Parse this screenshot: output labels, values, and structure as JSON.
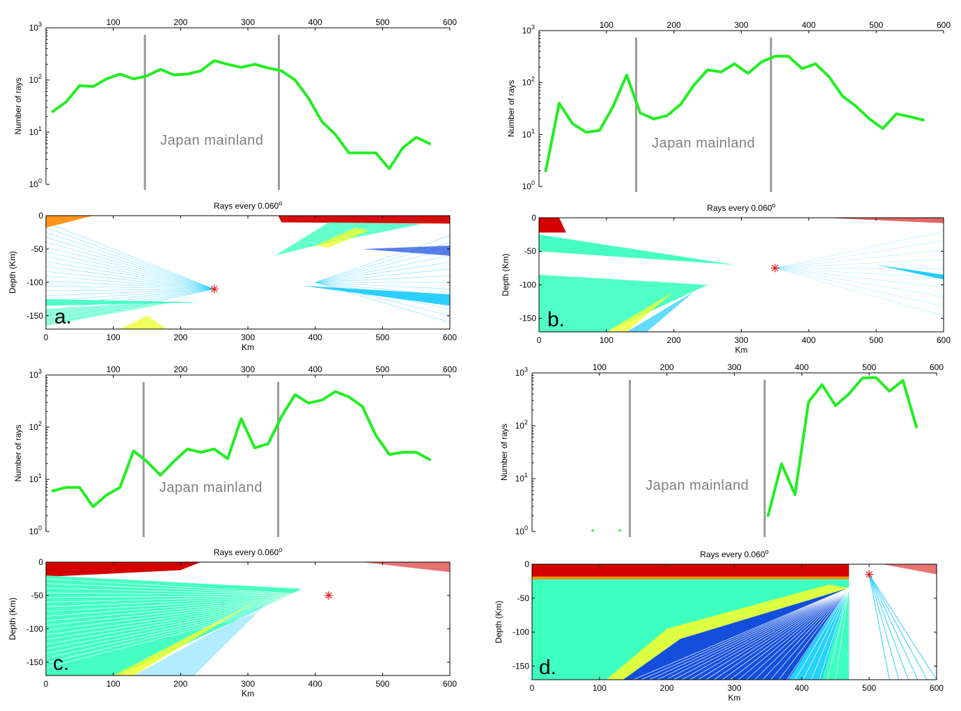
{
  "colors": {
    "ray_line": "#22ee22",
    "mainland_bar": "#9a9a9a",
    "mainland_text": "#7f7f7f",
    "event_star": "#e31a1c",
    "cmap_red": "#d40000",
    "cmap_orange": "#ff8a00",
    "cmap_yellow": "#eeff33",
    "cmap_cyan": "#22ccff",
    "cmap_green": "#3dffc0",
    "cmap_blue": "#1144dd"
  },
  "chart_data": [
    {
      "panel": "a.",
      "type": "line",
      "yscale": "log",
      "ylabel": "Number of rays",
      "xlim": [
        0,
        600
      ],
      "ylim": [
        1,
        1000
      ],
      "xticks": [
        "100",
        "200",
        "300",
        "400",
        "500",
        "600"
      ],
      "ytick_labels": [
        {
          "base": "10",
          "exp": "3"
        },
        {
          "base": "10",
          "exp": "2"
        },
        {
          "base": "10",
          "exp": "1"
        },
        {
          "base": "10",
          "exp": "0"
        }
      ],
      "mainland_label": "Japan mainland",
      "mainland_bounds_km": [
        147,
        346
      ],
      "x": [
        10,
        30,
        50,
        70,
        90,
        110,
        130,
        150,
        170,
        190,
        210,
        230,
        250,
        270,
        290,
        310,
        330,
        350,
        370,
        390,
        410,
        430,
        450,
        470,
        490,
        510,
        530,
        550,
        570
      ],
      "y": [
        25,
        38,
        78,
        75,
        105,
        130,
        105,
        120,
        160,
        125,
        130,
        150,
        235,
        200,
        175,
        200,
        170,
        150,
        100,
        45,
        16,
        9,
        4,
        4,
        4,
        2,
        5,
        8,
        6
      ],
      "depth_plot": {
        "caption_prefix": "Rays every 0.060",
        "caption_sup": "o",
        "xlabel": "Km",
        "ylabel": "Depth (Km)",
        "xlim": [
          0,
          600
        ],
        "ylim": [
          -170,
          0
        ],
        "xticks": [
          "0",
          "100",
          "200",
          "300",
          "400",
          "500",
          "600"
        ],
        "yticks": [
          "0",
          "-50",
          "-100",
          "-150"
        ],
        "event": {
          "x": 250,
          "depth": -110
        }
      }
    },
    {
      "panel": "b.",
      "type": "line",
      "yscale": "log",
      "ylabel": "Number of rays",
      "xlim": [
        0,
        600
      ],
      "ylim": [
        1,
        1000
      ],
      "xticks": [
        "100",
        "200",
        "300",
        "400",
        "500",
        "600"
      ],
      "ytick_labels": [
        {
          "base": "10",
          "exp": "3"
        },
        {
          "base": "10",
          "exp": "2"
        },
        {
          "base": "10",
          "exp": "1"
        },
        {
          "base": "10",
          "exp": "0"
        }
      ],
      "mainland_label": "Japan mainland",
      "mainland_bounds_km": [
        144,
        344
      ],
      "x": [
        10,
        30,
        50,
        70,
        90,
        110,
        130,
        150,
        170,
        190,
        210,
        230,
        250,
        270,
        290,
        310,
        330,
        350,
        370,
        390,
        410,
        430,
        450,
        470,
        490,
        510,
        530,
        550,
        570
      ],
      "y": [
        2,
        40,
        16,
        11,
        12,
        35,
        140,
        26,
        20,
        23,
        38,
        90,
        175,
        160,
        230,
        150,
        250,
        320,
        320,
        185,
        230,
        130,
        55,
        35,
        20,
        13,
        25,
        22,
        19
      ],
      "depth_plot": {
        "caption_prefix": "Rays every 0.060",
        "caption_sup": "o",
        "xlabel": "Km",
        "ylabel": "Depth (Km)",
        "xlim": [
          0,
          600
        ],
        "ylim": [
          -170,
          0
        ],
        "xticks": [
          "0",
          "100",
          "200",
          "300",
          "400",
          "500",
          "600"
        ],
        "yticks": [
          "0",
          "-50",
          "-100",
          "-150"
        ],
        "event": {
          "x": 350,
          "depth": -75
        }
      }
    },
    {
      "panel": "c.",
      "type": "line",
      "yscale": "log",
      "ylabel": "Number of rays",
      "xlim": [
        0,
        600
      ],
      "ylim": [
        1,
        1000
      ],
      "xticks": [
        "100",
        "200",
        "300",
        "400",
        "500",
        "600"
      ],
      "ytick_labels": [
        {
          "base": "10",
          "exp": "3"
        },
        {
          "base": "10",
          "exp": "2"
        },
        {
          "base": "10",
          "exp": "1"
        },
        {
          "base": "10",
          "exp": "0"
        }
      ],
      "mainland_label": "Japan mainland",
      "mainland_bounds_km": [
        145,
        345
      ],
      "x": [
        10,
        30,
        50,
        70,
        90,
        110,
        130,
        150,
        170,
        190,
        210,
        230,
        250,
        270,
        290,
        310,
        330,
        350,
        370,
        390,
        410,
        430,
        450,
        470,
        490,
        510,
        530,
        550,
        570
      ],
      "y": [
        6,
        7,
        7,
        3,
        5,
        7,
        35,
        22,
        12,
        22,
        38,
        33,
        38,
        25,
        145,
        40,
        48,
        160,
        420,
        290,
        330,
        480,
        380,
        250,
        70,
        30,
        33,
        33,
        24
      ],
      "depth_plot": {
        "caption_prefix": "Rays every 0.060",
        "caption_sup": "o",
        "xlabel": "Km",
        "ylabel": "Depth (Km)",
        "xlim": [
          0,
          600
        ],
        "ylim": [
          -170,
          0
        ],
        "xticks": [
          "0",
          "100",
          "200",
          "300",
          "400",
          "500",
          "600"
        ],
        "yticks": [
          "0",
          "-50",
          "-100",
          "-150"
        ],
        "event": {
          "x": 420,
          "depth": -50
        }
      }
    },
    {
      "panel": "d.",
      "type": "line",
      "yscale": "log",
      "ylabel": "Number of rays",
      "xlim": [
        0,
        600
      ],
      "ylim": [
        1,
        1000
      ],
      "xticks": [
        "100",
        "200",
        "300",
        "400",
        "500",
        "600"
      ],
      "ytick_labels": [
        {
          "base": "10",
          "exp": "3"
        },
        {
          "base": "10",
          "exp": "2"
        },
        {
          "base": "10",
          "exp": "1"
        },
        {
          "base": "10",
          "exp": "0"
        }
      ],
      "mainland_label": "Japan mainland",
      "mainland_bounds_km": [
        145,
        345
      ],
      "isolated_points": [
        {
          "x": 90,
          "y": 1
        },
        {
          "x": 130,
          "y": 1
        }
      ],
      "x": [
        350,
        370,
        390,
        410,
        430,
        450,
        470,
        490,
        510,
        530,
        550,
        570
      ],
      "y": [
        2,
        19,
        5,
        280,
        600,
        240,
        400,
        800,
        820,
        450,
        720,
        95
      ],
      "depth_plot": {
        "caption_prefix": "Rays every 0.060",
        "caption_sup": "o",
        "xlabel": "Km",
        "ylabel": "Depth (Km)",
        "xlim": [
          0,
          600
        ],
        "ylim": [
          -170,
          0
        ],
        "xticks": [
          "0",
          "100",
          "200",
          "300",
          "400",
          "500",
          "600"
        ],
        "yticks": [
          "0",
          "-50",
          "-100",
          "-150"
        ],
        "event": {
          "x": 500,
          "depth": -15
        }
      }
    }
  ]
}
